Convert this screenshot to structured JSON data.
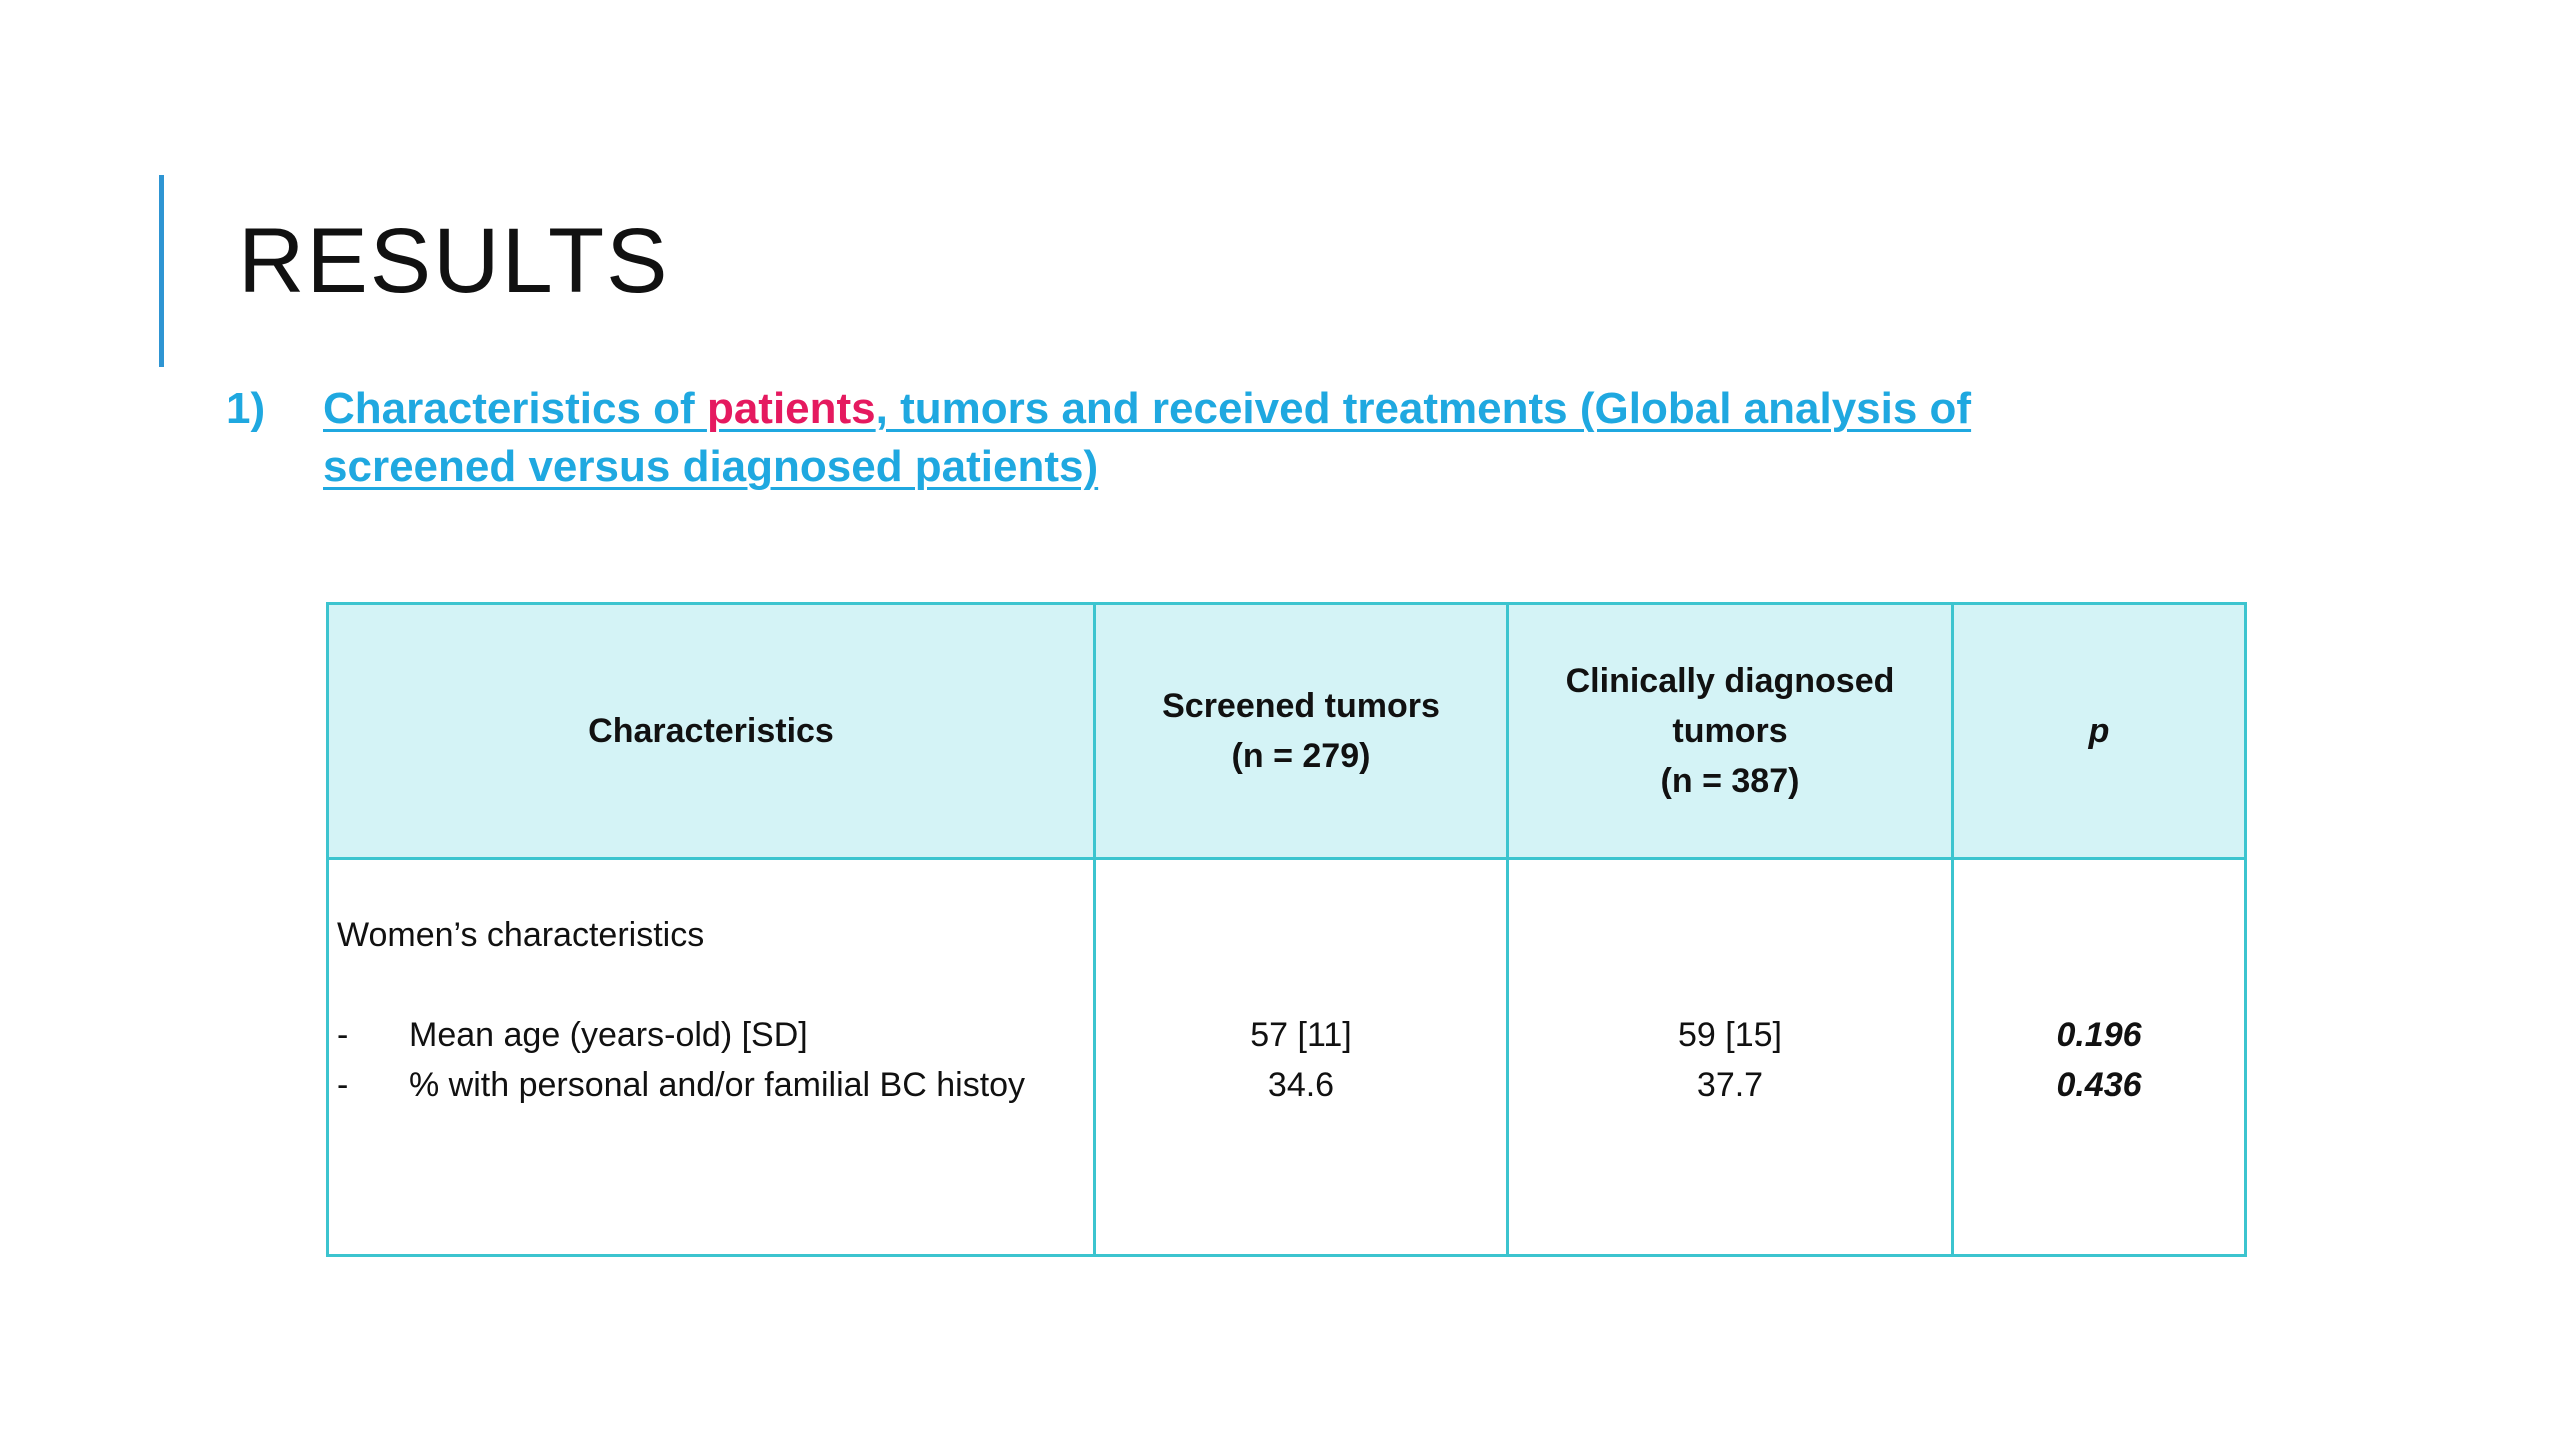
{
  "slide": {
    "title": "RESULTS",
    "colors": {
      "accent_bar": "#2E95D3",
      "heading": "#1FA8E0",
      "highlight": "#E5195F",
      "table_border": "#3CC4CF",
      "table_header_bg": "#D4F3F6"
    }
  },
  "section": {
    "number": "1)",
    "heading_before": "Characteristics of ",
    "heading_highlight": "patients",
    "heading_after": ", tumors and received treatments (Global analysis of screened versus diagnosed patients)"
  },
  "table": {
    "headers": {
      "characteristics": "Characteristics",
      "screened_line1": "Screened tumors",
      "screened_line2": "(n = 279)",
      "clinical_line1": "Clinically diagnosed",
      "clinical_line2": "tumors",
      "clinical_line3": "(n = 387)",
      "p": "p"
    },
    "group_label": "Women’s characteristics",
    "rows": [
      {
        "dash": "-",
        "label": "Mean age (years-old) [SD]",
        "screened": "57 [11]",
        "clinical": "59 [15]",
        "p": "0.196"
      },
      {
        "dash": "-",
        "label": "% with personal and/or familial BC histoy",
        "screened": "34.6",
        "clinical": "37.7",
        "p": "0.436"
      }
    ]
  }
}
